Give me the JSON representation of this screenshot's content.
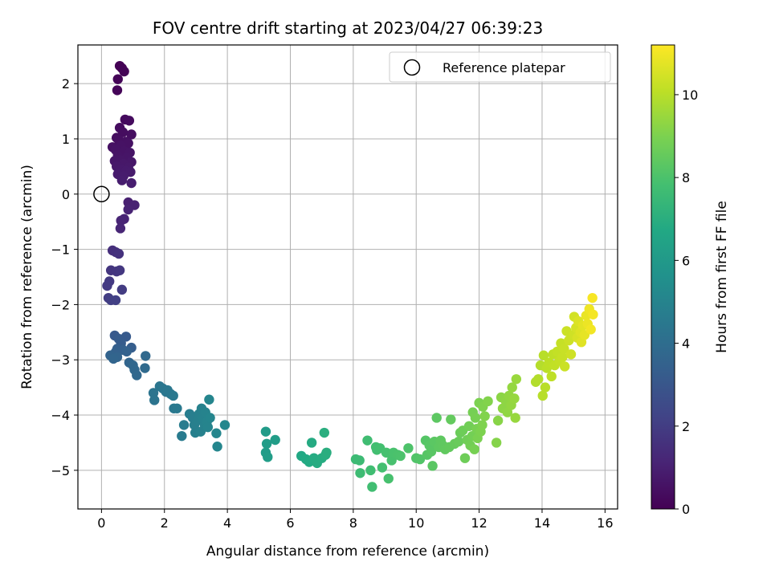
{
  "chart_data": {
    "type": "scatter",
    "title": "FOV centre drift starting at 2023/04/27 06:39:23",
    "xlabel": "Angular distance from reference (arcmin)",
    "ylabel": "Rotation from reference (arcmin)",
    "xlim": [
      -0.75,
      16.4
    ],
    "ylim": [
      -5.7,
      2.7
    ],
    "xticks": [
      0,
      2,
      4,
      6,
      8,
      10,
      12,
      14,
      16
    ],
    "yticks": [
      -5,
      -4,
      -3,
      -2,
      -1,
      0,
      1,
      2
    ],
    "grid": true,
    "colormap": "viridis",
    "colorbar": {
      "label": "Hours from first FF file",
      "range": [
        0,
        11.2
      ],
      "ticks": [
        0,
        2,
        4,
        6,
        8,
        10
      ]
    },
    "legend": {
      "position": "top-right",
      "entries": [
        "Reference platepar"
      ]
    },
    "reference_point": {
      "x": 0,
      "y": 0,
      "label": "Reference platepar"
    },
    "points": [
      {
        "x": 0.58,
        "y": 2.32,
        "h": 0.02
      },
      {
        "x": 0.65,
        "y": 2.28,
        "h": 0.05
      },
      {
        "x": 0.72,
        "y": 2.22,
        "h": 0.08
      },
      {
        "x": 0.52,
        "y": 2.08,
        "h": 0.1
      },
      {
        "x": 0.5,
        "y": 1.88,
        "h": 0.14
      },
      {
        "x": 0.75,
        "y": 1.35,
        "h": 0.3
      },
      {
        "x": 0.88,
        "y": 1.33,
        "h": 0.33
      },
      {
        "x": 0.58,
        "y": 1.2,
        "h": 0.36
      },
      {
        "x": 0.68,
        "y": 1.12,
        "h": 0.38
      },
      {
        "x": 0.95,
        "y": 1.08,
        "h": 0.4
      },
      {
        "x": 0.48,
        "y": 1.02,
        "h": 0.42
      },
      {
        "x": 0.55,
        "y": 0.98,
        "h": 0.45
      },
      {
        "x": 0.78,
        "y": 0.95,
        "h": 0.47
      },
      {
        "x": 0.85,
        "y": 0.92,
        "h": 0.5
      },
      {
        "x": 0.35,
        "y": 0.85,
        "h": 0.52
      },
      {
        "x": 0.62,
        "y": 0.88,
        "h": 0.54
      },
      {
        "x": 0.45,
        "y": 0.8,
        "h": 0.56
      },
      {
        "x": 0.72,
        "y": 0.78,
        "h": 0.58
      },
      {
        "x": 0.9,
        "y": 0.75,
        "h": 0.6
      },
      {
        "x": 0.52,
        "y": 0.7,
        "h": 0.62
      },
      {
        "x": 0.8,
        "y": 0.66,
        "h": 0.64
      },
      {
        "x": 0.6,
        "y": 0.62,
        "h": 0.66
      },
      {
        "x": 0.42,
        "y": 0.6,
        "h": 0.68
      },
      {
        "x": 0.95,
        "y": 0.58,
        "h": 0.7
      },
      {
        "x": 0.7,
        "y": 0.55,
        "h": 0.72
      },
      {
        "x": 0.48,
        "y": 0.5,
        "h": 0.74
      },
      {
        "x": 0.85,
        "y": 0.48,
        "h": 0.76
      },
      {
        "x": 0.62,
        "y": 0.45,
        "h": 0.78
      },
      {
        "x": 0.78,
        "y": 0.42,
        "h": 0.8
      },
      {
        "x": 0.92,
        "y": 0.4,
        "h": 0.82
      },
      {
        "x": 0.52,
        "y": 0.36,
        "h": 0.84
      },
      {
        "x": 0.7,
        "y": 0.33,
        "h": 0.86
      },
      {
        "x": 0.65,
        "y": 0.25,
        "h": 0.88
      },
      {
        "x": 0.95,
        "y": 0.2,
        "h": 0.9
      },
      {
        "x": 0.85,
        "y": -0.15,
        "h": 1.0
      },
      {
        "x": 1.05,
        "y": -0.2,
        "h": 1.05
      },
      {
        "x": 0.85,
        "y": -0.28,
        "h": 1.08
      },
      {
        "x": 0.72,
        "y": -0.45,
        "h": 1.12
      },
      {
        "x": 0.62,
        "y": -0.48,
        "h": 1.15
      },
      {
        "x": 0.6,
        "y": -0.62,
        "h": 1.2
      },
      {
        "x": 0.35,
        "y": -1.02,
        "h": 1.5
      },
      {
        "x": 0.45,
        "y": -1.05,
        "h": 1.55
      },
      {
        "x": 0.55,
        "y": -1.08,
        "h": 1.6
      },
      {
        "x": 0.3,
        "y": -1.38,
        "h": 1.7
      },
      {
        "x": 0.48,
        "y": -1.4,
        "h": 1.75
      },
      {
        "x": 0.58,
        "y": -1.38,
        "h": 1.78
      },
      {
        "x": 0.25,
        "y": -1.58,
        "h": 1.85
      },
      {
        "x": 0.18,
        "y": -1.66,
        "h": 1.9
      },
      {
        "x": 0.65,
        "y": -1.73,
        "h": 1.95
      },
      {
        "x": 0.22,
        "y": -1.88,
        "h": 2.0
      },
      {
        "x": 0.3,
        "y": -1.92,
        "h": 2.05
      },
      {
        "x": 0.45,
        "y": -1.92,
        "h": 2.1
      },
      {
        "x": 0.42,
        "y": -2.56,
        "h": 3.1
      },
      {
        "x": 0.78,
        "y": -2.58,
        "h": 3.15
      },
      {
        "x": 0.55,
        "y": -2.62,
        "h": 3.2
      },
      {
        "x": 0.62,
        "y": -2.7,
        "h": 3.25
      },
      {
        "x": 0.95,
        "y": -2.78,
        "h": 3.3
      },
      {
        "x": 0.5,
        "y": -2.8,
        "h": 3.35
      },
      {
        "x": 0.68,
        "y": -2.82,
        "h": 3.4
      },
      {
        "x": 0.45,
        "y": -2.86,
        "h": 3.45
      },
      {
        "x": 0.8,
        "y": -2.85,
        "h": 3.5
      },
      {
        "x": 0.28,
        "y": -2.92,
        "h": 3.55
      },
      {
        "x": 0.5,
        "y": -2.95,
        "h": 3.6
      },
      {
        "x": 0.38,
        "y": -2.98,
        "h": 3.62
      },
      {
        "x": 0.88,
        "y": -3.05,
        "h": 3.65
      },
      {
        "x": 1.0,
        "y": -3.1,
        "h": 3.7
      },
      {
        "x": 1.05,
        "y": -3.18,
        "h": 3.72
      },
      {
        "x": 1.12,
        "y": -3.28,
        "h": 3.75
      },
      {
        "x": 1.4,
        "y": -2.93,
        "h": 3.8
      },
      {
        "x": 1.38,
        "y": -3.15,
        "h": 3.85
      },
      {
        "x": 1.65,
        "y": -3.6,
        "h": 4.3
      },
      {
        "x": 1.68,
        "y": -3.73,
        "h": 4.32
      },
      {
        "x": 1.85,
        "y": -3.48,
        "h": 4.35
      },
      {
        "x": 1.95,
        "y": -3.52,
        "h": 4.38
      },
      {
        "x": 2.05,
        "y": -3.58,
        "h": 4.4
      },
      {
        "x": 2.1,
        "y": -3.55,
        "h": 4.42
      },
      {
        "x": 2.2,
        "y": -3.62,
        "h": 4.45
      },
      {
        "x": 2.28,
        "y": -3.65,
        "h": 4.48
      },
      {
        "x": 2.3,
        "y": -3.88,
        "h": 4.5
      },
      {
        "x": 2.4,
        "y": -3.88,
        "h": 4.52
      },
      {
        "x": 2.55,
        "y": -4.38,
        "h": 4.6
      },
      {
        "x": 2.62,
        "y": -4.18,
        "h": 4.65
      },
      {
        "x": 2.8,
        "y": -3.98,
        "h": 4.7
      },
      {
        "x": 2.9,
        "y": -4.05,
        "h": 4.75
      },
      {
        "x": 2.95,
        "y": -4.18,
        "h": 4.78
      },
      {
        "x": 2.98,
        "y": -4.32,
        "h": 4.8
      },
      {
        "x": 3.05,
        "y": -4.1,
        "h": 4.82
      },
      {
        "x": 3.1,
        "y": -3.98,
        "h": 4.85
      },
      {
        "x": 3.15,
        "y": -4.3,
        "h": 4.88
      },
      {
        "x": 3.18,
        "y": -3.88,
        "h": 4.9
      },
      {
        "x": 3.22,
        "y": -4.05,
        "h": 4.92
      },
      {
        "x": 3.28,
        "y": -4.18,
        "h": 4.95
      },
      {
        "x": 3.3,
        "y": -3.95,
        "h": 4.98
      },
      {
        "x": 3.35,
        "y": -4.12,
        "h": 5.0
      },
      {
        "x": 3.38,
        "y": -4.22,
        "h": 5.02
      },
      {
        "x": 3.42,
        "y": -3.72,
        "h": 5.05
      },
      {
        "x": 3.45,
        "y": -4.05,
        "h": 5.08
      },
      {
        "x": 3.65,
        "y": -4.33,
        "h": 5.1
      },
      {
        "x": 3.68,
        "y": -4.57,
        "h": 5.12
      },
      {
        "x": 3.92,
        "y": -4.18,
        "h": 5.15
      },
      {
        "x": 5.22,
        "y": -4.3,
        "h": 6.1
      },
      {
        "x": 5.25,
        "y": -4.52,
        "h": 6.12
      },
      {
        "x": 5.22,
        "y": -4.68,
        "h": 6.15
      },
      {
        "x": 5.28,
        "y": -4.76,
        "h": 6.18
      },
      {
        "x": 5.52,
        "y": -4.45,
        "h": 6.2
      },
      {
        "x": 6.35,
        "y": -4.74,
        "h": 6.7
      },
      {
        "x": 6.5,
        "y": -4.8,
        "h": 6.75
      },
      {
        "x": 6.6,
        "y": -4.85,
        "h": 6.8
      },
      {
        "x": 6.68,
        "y": -4.5,
        "h": 6.82
      },
      {
        "x": 6.75,
        "y": -4.78,
        "h": 6.85
      },
      {
        "x": 6.85,
        "y": -4.87,
        "h": 6.88
      },
      {
        "x": 7.0,
        "y": -4.78,
        "h": 6.9
      },
      {
        "x": 7.12,
        "y": -4.72,
        "h": 6.95
      },
      {
        "x": 7.15,
        "y": -4.68,
        "h": 6.98
      },
      {
        "x": 7.08,
        "y": -4.32,
        "h": 7.0
      },
      {
        "x": 8.08,
        "y": -4.8,
        "h": 7.6
      },
      {
        "x": 8.2,
        "y": -4.82,
        "h": 7.62
      },
      {
        "x": 8.22,
        "y": -5.05,
        "h": 7.65
      },
      {
        "x": 8.45,
        "y": -4.46,
        "h": 7.7
      },
      {
        "x": 8.55,
        "y": -5.0,
        "h": 7.72
      },
      {
        "x": 8.6,
        "y": -5.3,
        "h": 7.75
      },
      {
        "x": 8.72,
        "y": -4.58,
        "h": 7.78
      },
      {
        "x": 8.75,
        "y": -4.63,
        "h": 7.8
      },
      {
        "x": 8.85,
        "y": -4.6,
        "h": 7.82
      },
      {
        "x": 8.92,
        "y": -4.95,
        "h": 7.85
      },
      {
        "x": 9.05,
        "y": -4.68,
        "h": 7.88
      },
      {
        "x": 9.12,
        "y": -5.15,
        "h": 7.9
      },
      {
        "x": 9.22,
        "y": -4.82,
        "h": 7.92
      },
      {
        "x": 9.28,
        "y": -4.68,
        "h": 7.95
      },
      {
        "x": 9.42,
        "y": -4.72,
        "h": 7.98
      },
      {
        "x": 9.5,
        "y": -4.74,
        "h": 8.0
      },
      {
        "x": 9.75,
        "y": -4.6,
        "h": 8.05
      },
      {
        "x": 10.0,
        "y": -4.78,
        "h": 8.1
      },
      {
        "x": 10.12,
        "y": -4.8,
        "h": 8.12
      },
      {
        "x": 10.3,
        "y": -4.46,
        "h": 8.2
      },
      {
        "x": 10.35,
        "y": -4.72,
        "h": 8.22
      },
      {
        "x": 10.42,
        "y": -4.55,
        "h": 8.25
      },
      {
        "x": 10.48,
        "y": -4.66,
        "h": 8.28
      },
      {
        "x": 10.52,
        "y": -4.92,
        "h": 8.3
      },
      {
        "x": 10.58,
        "y": -4.48,
        "h": 8.32
      },
      {
        "x": 10.65,
        "y": -4.05,
        "h": 8.35
      },
      {
        "x": 10.72,
        "y": -4.58,
        "h": 8.38
      },
      {
        "x": 10.78,
        "y": -4.46,
        "h": 8.4
      },
      {
        "x": 10.85,
        "y": -4.55,
        "h": 8.42
      },
      {
        "x": 10.92,
        "y": -4.62,
        "h": 8.45
      },
      {
        "x": 11.05,
        "y": -4.58,
        "h": 8.48
      },
      {
        "x": 11.1,
        "y": -4.08,
        "h": 8.5
      },
      {
        "x": 11.22,
        "y": -4.52,
        "h": 8.55
      },
      {
        "x": 11.35,
        "y": -4.48,
        "h": 8.6
      },
      {
        "x": 11.4,
        "y": -4.32,
        "h": 8.65
      },
      {
        "x": 11.48,
        "y": -4.28,
        "h": 8.7
      },
      {
        "x": 11.55,
        "y": -4.78,
        "h": 8.72
      },
      {
        "x": 11.62,
        "y": -4.45,
        "h": 8.75
      },
      {
        "x": 11.68,
        "y": -4.2,
        "h": 8.78
      },
      {
        "x": 11.72,
        "y": -4.55,
        "h": 8.8
      },
      {
        "x": 11.78,
        "y": -4.38,
        "h": 8.82
      },
      {
        "x": 11.8,
        "y": -3.95,
        "h": 8.85
      },
      {
        "x": 11.85,
        "y": -4.62,
        "h": 8.88
      },
      {
        "x": 11.88,
        "y": -4.05,
        "h": 8.9
      },
      {
        "x": 11.92,
        "y": -4.25,
        "h": 8.92
      },
      {
        "x": 11.95,
        "y": -4.42,
        "h": 8.95
      },
      {
        "x": 12.0,
        "y": -3.78,
        "h": 8.98
      },
      {
        "x": 12.05,
        "y": -4.3,
        "h": 9.0
      },
      {
        "x": 12.1,
        "y": -4.18,
        "h": 9.02
      },
      {
        "x": 12.12,
        "y": -3.85,
        "h": 9.05
      },
      {
        "x": 12.18,
        "y": -4.02,
        "h": 9.08
      },
      {
        "x": 12.28,
        "y": -3.75,
        "h": 9.1
      },
      {
        "x": 12.55,
        "y": -4.5,
        "h": 9.15
      },
      {
        "x": 12.6,
        "y": -4.1,
        "h": 9.2
      },
      {
        "x": 12.7,
        "y": -3.68,
        "h": 9.25
      },
      {
        "x": 12.75,
        "y": -3.88,
        "h": 9.28
      },
      {
        "x": 12.85,
        "y": -3.75,
        "h": 9.3
      },
      {
        "x": 12.9,
        "y": -3.95,
        "h": 9.32
      },
      {
        "x": 12.95,
        "y": -3.65,
        "h": 9.35
      },
      {
        "x": 13.02,
        "y": -3.82,
        "h": 9.38
      },
      {
        "x": 13.05,
        "y": -3.5,
        "h": 9.4
      },
      {
        "x": 13.12,
        "y": -3.7,
        "h": 9.42
      },
      {
        "x": 13.15,
        "y": -4.05,
        "h": 9.45
      },
      {
        "x": 13.18,
        "y": -3.35,
        "h": 9.48
      },
      {
        "x": 13.8,
        "y": -3.4,
        "h": 9.9
      },
      {
        "x": 13.88,
        "y": -3.35,
        "h": 9.92
      },
      {
        "x": 13.95,
        "y": -3.1,
        "h": 9.95
      },
      {
        "x": 14.02,
        "y": -3.65,
        "h": 9.98
      },
      {
        "x": 14.05,
        "y": -2.92,
        "h": 10.0
      },
      {
        "x": 14.1,
        "y": -3.5,
        "h": 10.02
      },
      {
        "x": 14.15,
        "y": -3.15,
        "h": 10.05
      },
      {
        "x": 14.22,
        "y": -3.05,
        "h": 10.08
      },
      {
        "x": 14.3,
        "y": -3.3,
        "h": 10.1
      },
      {
        "x": 14.35,
        "y": -2.9,
        "h": 10.12
      },
      {
        "x": 14.4,
        "y": -3.1,
        "h": 10.15
      },
      {
        "x": 14.48,
        "y": -2.85,
        "h": 10.18
      },
      {
        "x": 14.55,
        "y": -3.02,
        "h": 10.2
      },
      {
        "x": 14.6,
        "y": -2.7,
        "h": 10.22
      },
      {
        "x": 14.65,
        "y": -2.95,
        "h": 10.25
      },
      {
        "x": 14.7,
        "y": -2.8,
        "h": 10.28
      },
      {
        "x": 14.72,
        "y": -3.12,
        "h": 10.3
      },
      {
        "x": 14.78,
        "y": -2.48,
        "h": 10.32
      },
      {
        "x": 14.85,
        "y": -2.65,
        "h": 10.35
      },
      {
        "x": 14.92,
        "y": -2.9,
        "h": 10.38
      },
      {
        "x": 15.0,
        "y": -2.55,
        "h": 10.4
      },
      {
        "x": 15.02,
        "y": -2.22,
        "h": 10.45
      },
      {
        "x": 15.08,
        "y": -2.42,
        "h": 10.5
      },
      {
        "x": 15.12,
        "y": -2.6,
        "h": 10.55
      },
      {
        "x": 15.15,
        "y": -2.3,
        "h": 10.6
      },
      {
        "x": 15.22,
        "y": -2.5,
        "h": 10.65
      },
      {
        "x": 15.25,
        "y": -2.68,
        "h": 10.7
      },
      {
        "x": 15.3,
        "y": -2.38,
        "h": 10.75
      },
      {
        "x": 15.35,
        "y": -2.55,
        "h": 10.8
      },
      {
        "x": 15.4,
        "y": -2.2,
        "h": 10.85
      },
      {
        "x": 15.45,
        "y": -2.35,
        "h": 10.9
      },
      {
        "x": 15.5,
        "y": -2.08,
        "h": 10.95
      },
      {
        "x": 15.55,
        "y": -2.45,
        "h": 11.0
      },
      {
        "x": 15.62,
        "y": -2.18,
        "h": 11.05
      },
      {
        "x": 15.6,
        "y": -1.88,
        "h": 11.1
      }
    ]
  }
}
